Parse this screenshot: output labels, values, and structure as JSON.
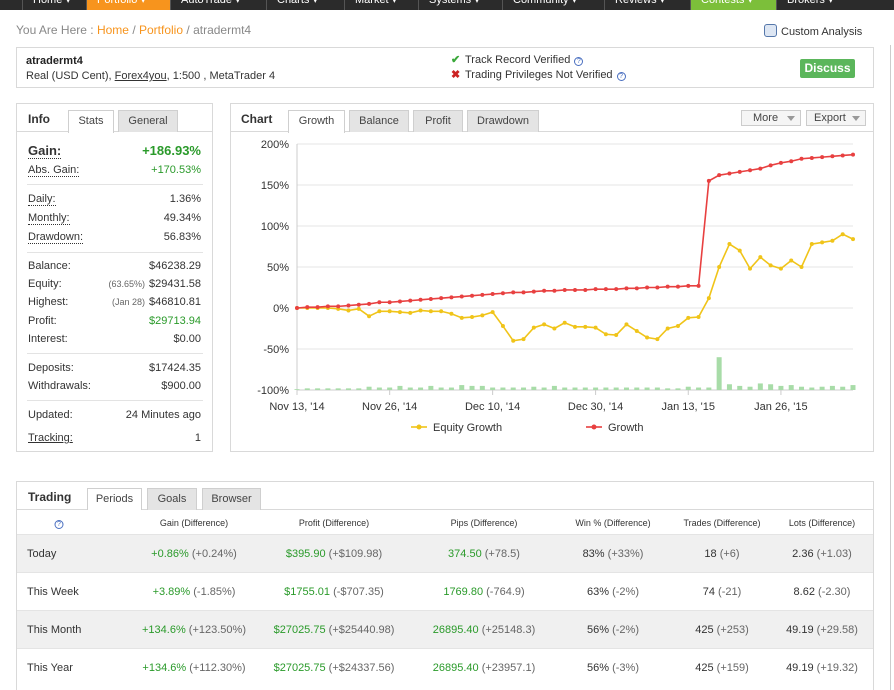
{
  "nav": {
    "items": [
      {
        "label": "Home ▾"
      },
      {
        "label": "Portfolio ▾"
      },
      {
        "label": "AutoTrade ▾"
      },
      {
        "label": "Charts ▾"
      },
      {
        "label": "Market ▾"
      },
      {
        "label": "Systems ▾"
      },
      {
        "label": "Community ▾"
      },
      {
        "label": "Reviews ▾"
      },
      {
        "label": "Contests ▾"
      },
      {
        "label": "Brokers ▾"
      }
    ]
  },
  "breadcrumb": {
    "prefix": "You Are Here :",
    "home": "Home",
    "sep1": "/",
    "portfolio": "Portfolio",
    "sep2": "/",
    "current": "atradermt4"
  },
  "custom_analysis": "Custom Analysis",
  "account": {
    "name": "atradermt4",
    "type": "Real (USD Cent)",
    "broker": "Forex4you",
    "leverage": "1:500",
    "platform": "MetaTrader 4",
    "track_record": "Track Record Verified",
    "privileges": "Trading Privileges Not Verified",
    "discuss": "Discuss"
  },
  "info": {
    "title": "Info",
    "tabs": [
      "Stats",
      "General"
    ],
    "gain_label": "Gain:",
    "gain": "+186.93%",
    "abs_gain_label": "Abs. Gain:",
    "abs_gain": "+170.53%",
    "daily_label": "Daily:",
    "daily": "1.36%",
    "monthly_label": "Monthly:",
    "monthly": "49.34%",
    "drawdown_label": "Drawdown:",
    "drawdown": "56.83%",
    "balance_label": "Balance:",
    "balance": "$46238.29",
    "equity_label": "Equity:",
    "equity_pct": "(63.65%)",
    "equity": "$29431.58",
    "highest_label": "Highest:",
    "highest_date": "(Jan 28)",
    "highest": "$46810.81",
    "profit_label": "Profit:",
    "profit": "$29713.94",
    "interest_label": "Interest:",
    "interest": "$0.00",
    "deposits_label": "Deposits:",
    "deposits": "$17424.35",
    "withdrawals_label": "Withdrawals:",
    "withdrawals": "$900.00",
    "updated_label": "Updated:",
    "updated": "24 Minutes ago",
    "tracking_label": "Tracking:",
    "tracking": "1"
  },
  "chart_panel": {
    "title": "Chart",
    "tabs": [
      "Growth",
      "Balance",
      "Profit",
      "Drawdown"
    ],
    "more": "More",
    "export": "Export"
  },
  "chart_data": {
    "type": "line",
    "title": "",
    "xlabel": "",
    "ylabel": "",
    "ylim": [
      -100,
      200
    ],
    "yticks": [
      -100,
      -50,
      0,
      50,
      100,
      150,
      200
    ],
    "ytick_labels": [
      "-100%",
      "-50%",
      "0%",
      "50%",
      "100%",
      "150%",
      "200%"
    ],
    "xtick_labels": [
      "Nov 13, '14",
      "Nov 26, '14",
      "Dec 10, '14",
      "Dec 30, '14",
      "Jan 13, '15",
      "Jan 26, '15"
    ],
    "xtick_index": [
      0,
      9,
      19,
      29,
      38,
      47
    ],
    "legend": [
      "Equity Growth",
      "Growth"
    ],
    "legend_position": "bottom",
    "colors": {
      "equity": "#f0c419",
      "growth": "#e84040",
      "volume": "#a8dca8"
    },
    "series": [
      {
        "name": "Growth",
        "values": [
          0,
          1,
          1,
          2,
          2,
          3,
          4,
          5,
          7,
          7,
          8,
          9,
          10,
          11,
          12,
          13,
          14,
          15,
          16,
          17,
          18,
          19,
          19,
          20,
          21,
          21,
          22,
          22,
          22,
          23,
          23,
          23,
          24,
          24,
          25,
          25,
          26,
          26,
          27,
          27,
          155,
          162,
          164,
          166,
          168,
          170,
          174,
          177,
          179,
          182,
          183,
          184,
          185,
          186,
          187
        ]
      },
      {
        "name": "Equity Growth",
        "values": [
          0,
          0,
          0,
          0,
          -1,
          -3,
          -1,
          -10,
          -4,
          -4,
          -5,
          -6,
          -3,
          -4,
          -4,
          -7,
          -12,
          -11,
          -9,
          -5,
          -22,
          -40,
          -38,
          -24,
          -20,
          -25,
          -18,
          -23,
          -23,
          -24,
          -32,
          -33,
          -20,
          -28,
          -36,
          -38,
          -25,
          -22,
          -12,
          -11,
          12,
          50,
          78,
          70,
          48,
          62,
          52,
          48,
          58,
          50,
          78,
          80,
          82,
          90,
          84
        ]
      },
      {
        "name": "Volume",
        "values": [
          1,
          2,
          2,
          2,
          2,
          2,
          2,
          4,
          3,
          3,
          5,
          3,
          3,
          5,
          3,
          3,
          6,
          5,
          5,
          3,
          3,
          3,
          3,
          4,
          3,
          5,
          3,
          3,
          3,
          3,
          3,
          3,
          3,
          3,
          3,
          3,
          2,
          2,
          4,
          3,
          3,
          40,
          7,
          5,
          4,
          8,
          7,
          5,
          6,
          4,
          3,
          4,
          5,
          4,
          6
        ]
      }
    ]
  },
  "trading": {
    "title": "Trading",
    "tabs": [
      "Periods",
      "Goals",
      "Browser"
    ],
    "columns": [
      "Gain (Difference)",
      "Profit (Difference)",
      "Pips (Difference)",
      "Win % (Difference)",
      "Trades (Difference)",
      "Lots (Difference)"
    ],
    "rows": [
      {
        "period": "Today",
        "gain": "+0.86%",
        "gain_diff": "(+0.24%)",
        "profit": "$395.90",
        "profit_diff": "(+$109.98)",
        "pips": "374.50",
        "pips_diff": "(+78.5)",
        "win": "83%",
        "win_diff": "(+33%)",
        "trades": "18",
        "trades_diff": "(+6)",
        "lots": "2.36",
        "lots_diff": "(+1.03)"
      },
      {
        "period": "This Week",
        "gain": "+3.89%",
        "gain_diff": "(-1.85%)",
        "profit": "$1755.01",
        "profit_diff": "(-$707.35)",
        "pips": "1769.80",
        "pips_diff": "(-764.9)",
        "win": "63%",
        "win_diff": "(-2%)",
        "trades": "74",
        "trades_diff": "(-21)",
        "lots": "8.62",
        "lots_diff": "(-2.30)"
      },
      {
        "period": "This Month",
        "gain": "+134.6%",
        "gain_diff": "(+123.50%)",
        "profit": "$27025.75",
        "profit_diff": "(+$25440.98)",
        "pips": "26895.40",
        "pips_diff": "(+25148.3)",
        "win": "56%",
        "win_diff": "(-2%)",
        "trades": "425",
        "trades_diff": "(+253)",
        "lots": "49.19",
        "lots_diff": "(+29.58)"
      },
      {
        "period": "This Year",
        "gain": "+134.6%",
        "gain_diff": "(+112.30%)",
        "profit": "$27025.75",
        "profit_diff": "(+$24337.56)",
        "pips": "26895.40",
        "pips_diff": "(+23957.1)",
        "win": "56%",
        "win_diff": "(-3%)",
        "trades": "425",
        "trades_diff": "(+159)",
        "lots": "49.19",
        "lots_diff": "(+19.32)"
      }
    ]
  }
}
